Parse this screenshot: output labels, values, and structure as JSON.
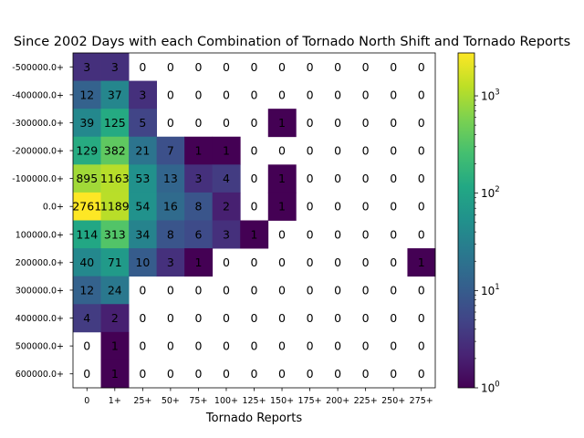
{
  "chart_data": {
    "type": "heatmap",
    "title": "Since 2002 Days with each Combination of Tornado North Shift and Tornado Reports",
    "xlabel": "Tornado Reports",
    "ylabel": "",
    "x_categories": [
      "0",
      "1+",
      "25+",
      "50+",
      "75+",
      "100+",
      "125+",
      "150+",
      "175+",
      "200+",
      "225+",
      "250+",
      "275+"
    ],
    "y_categories": [
      "-500000.0+",
      "-400000.0+",
      "-300000.0+",
      "-200000.0+",
      "-100000.0+",
      "0.0+",
      "100000.0+",
      "200000.0+",
      "300000.0+",
      "400000.0+",
      "500000.0+",
      "600000.0+"
    ],
    "values": [
      [
        3,
        3,
        0,
        0,
        0,
        0,
        0,
        0,
        0,
        0,
        0,
        0,
        0
      ],
      [
        12,
        37,
        3,
        0,
        0,
        0,
        0,
        0,
        0,
        0,
        0,
        0,
        0
      ],
      [
        39,
        125,
        5,
        0,
        0,
        0,
        0,
        1,
        0,
        0,
        0,
        0,
        0
      ],
      [
        129,
        382,
        21,
        7,
        1,
        1,
        0,
        0,
        0,
        0,
        0,
        0,
        0
      ],
      [
        895,
        1163,
        53,
        13,
        3,
        4,
        0,
        1,
        0,
        0,
        0,
        0,
        0
      ],
      [
        2761,
        1189,
        54,
        16,
        8,
        2,
        0,
        1,
        0,
        0,
        0,
        0,
        0
      ],
      [
        114,
        313,
        34,
        8,
        6,
        3,
        1,
        0,
        0,
        0,
        0,
        0,
        0
      ],
      [
        40,
        71,
        10,
        3,
        1,
        0,
        0,
        0,
        0,
        0,
        0,
        0,
        1
      ],
      [
        12,
        24,
        0,
        0,
        0,
        0,
        0,
        0,
        0,
        0,
        0,
        0,
        0
      ],
      [
        4,
        2,
        0,
        0,
        0,
        0,
        0,
        0,
        0,
        0,
        0,
        0,
        0
      ],
      [
        0,
        1,
        0,
        0,
        0,
        0,
        0,
        0,
        0,
        0,
        0,
        0,
        0
      ],
      [
        0,
        1,
        0,
        0,
        0,
        0,
        0,
        0,
        0,
        0,
        0,
        0,
        0
      ]
    ],
    "colorscale": "viridis",
    "color_scale_type": "log",
    "color_range": [
      1,
      2761
    ],
    "colorbar_ticks": [
      {
        "base": "10",
        "exp": "0",
        "value": 1
      },
      {
        "base": "10",
        "exp": "1",
        "value": 10
      },
      {
        "base": "10",
        "exp": "2",
        "value": 100
      },
      {
        "base": "10",
        "exp": "3",
        "value": 1000
      }
    ],
    "zero_cells": "blank",
    "colors": {
      "dark_cell_text": "#000000",
      "background": "#ffffff"
    }
  }
}
